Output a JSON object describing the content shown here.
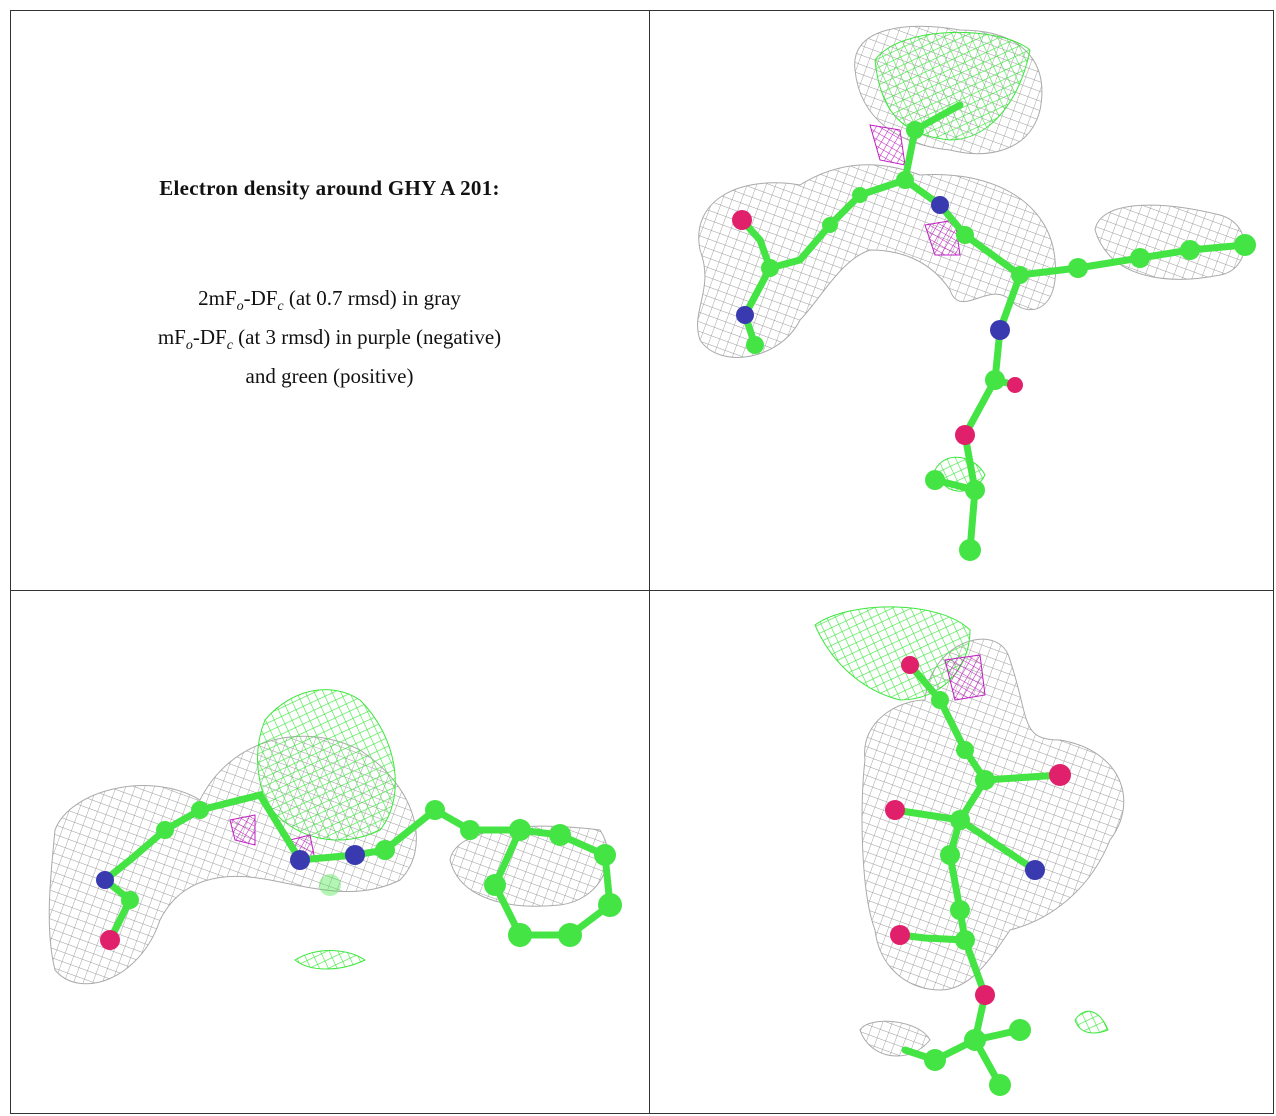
{
  "caption": {
    "title": "Electron density around GHY A 201:",
    "lines": [
      [
        "2mF",
        "o",
        "-DF",
        "c",
        " (at 0.7 rmsd) in gray"
      ],
      [
        "mF",
        "o",
        "-DF",
        "c",
        " (at 3 rmsd) in purple (negative)"
      ],
      [
        "and green (positive)"
      ]
    ]
  }
}
